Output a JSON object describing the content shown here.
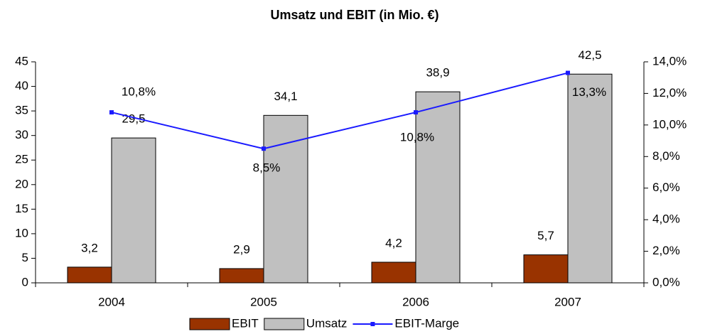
{
  "chart_data": {
    "type": "bar-line",
    "title": "Umsatz und EBIT (in Mio. €)",
    "categories": [
      "2004",
      "2005",
      "2006",
      "2007"
    ],
    "series": [
      {
        "name": "EBIT",
        "type": "bar",
        "color": "#993300",
        "values": [
          3.2,
          2.9,
          4.2,
          5.7
        ],
        "value_labels": [
          "3,2",
          "2,9",
          "4,2",
          "5,7"
        ]
      },
      {
        "name": "Umsatz",
        "type": "bar",
        "color": "#c0c0c0",
        "values": [
          29.5,
          34.1,
          38.9,
          42.5
        ],
        "value_labels": [
          "29,5",
          "34,1",
          "38,9",
          "42,5"
        ]
      },
      {
        "name": "EBIT-Marge",
        "type": "line",
        "axis": "y2",
        "color": "#1a1aff",
        "values": [
          10.8,
          8.5,
          10.8,
          13.3
        ],
        "value_labels": [
          "10,8%",
          "8,5%",
          "10,8%",
          "13,3%"
        ]
      }
    ],
    "ylim": [
      0,
      45
    ],
    "yticks": [
      0,
      5,
      10,
      15,
      20,
      25,
      30,
      35,
      40,
      45
    ],
    "y2lim": [
      0,
      14
    ],
    "y2ticks": [
      {
        "value": 0,
        "label": "0,0%"
      },
      {
        "value": 2,
        "label": "2,0%"
      },
      {
        "value": 4,
        "label": "4,0%"
      },
      {
        "value": 6,
        "label": "6,0%"
      },
      {
        "value": 8,
        "label": "8,0%"
      },
      {
        "value": 10,
        "label": "10,0%"
      },
      {
        "value": 12,
        "label": "12,0%"
      },
      {
        "value": 14,
        "label": "14,0%"
      }
    ],
    "grid": false,
    "legend": "bottom"
  }
}
